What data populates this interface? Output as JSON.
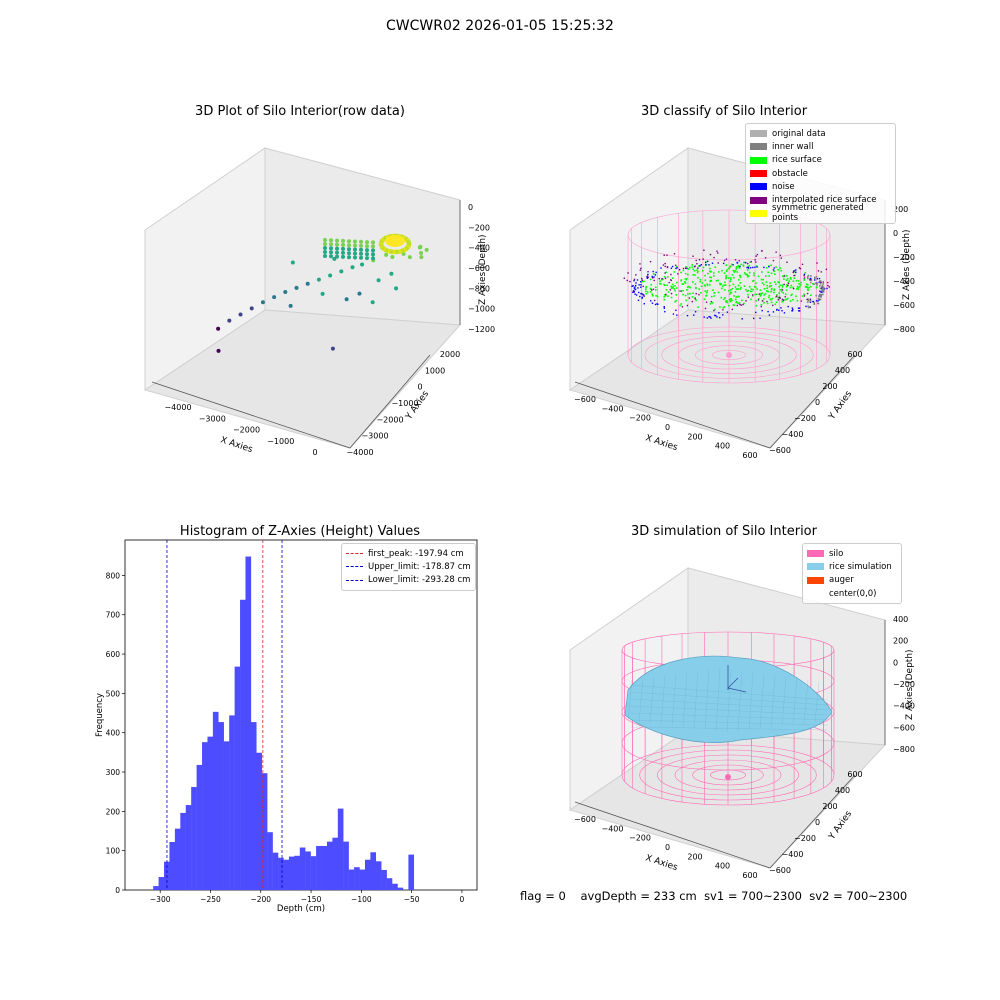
{
  "page_title": "CWCWR02 2026-01-05 15:25:32",
  "footer": {
    "flag": "flag = 0",
    "avg_depth": "avgDepth = 233 cm",
    "sv1": "sv1 = 700~2300",
    "sv2": "sv2 = 700~2300"
  },
  "colors": {
    "histogram_bar": "#4d4dff",
    "first_peak": "#d62728",
    "limit_lines": "#0000cc",
    "silo": "#ff69b4",
    "rice_simulation": "#87ceeb",
    "auger": "#ff4500",
    "rice_surface": "#00ff00",
    "noise": "#0000ff",
    "inner_wall": "#808080",
    "interpolated": "#800080"
  },
  "chart_data": [
    {
      "type": "scatter",
      "title": "3D Plot of Silo Interior(row data)",
      "projection": "3d",
      "xlabel": "X Axies",
      "ylabel": "Y Axies",
      "zlabel": "Z Axies (Depth)",
      "x_ticks": [
        "−4000",
        "−3000",
        "−2000",
        "−1000",
        "0"
      ],
      "y_ticks": [
        "−4000",
        "−3000",
        "−2000",
        "−1000",
        "0",
        "1000",
        "2000"
      ],
      "z_ticks": [
        "0",
        "−200",
        "−400",
        "−600",
        "−800",
        "−1000",
        "−1200"
      ],
      "xlim": [
        -4500,
        300
      ],
      "ylim": [
        -4200,
        2200
      ],
      "zlim": [
        -1300,
        0
      ],
      "colormap": "viridis",
      "points": [
        {
          "x": -200,
          "y": 1800,
          "z": -250
        },
        {
          "x": -300,
          "y": 1700,
          "z": -280
        },
        {
          "x": -400,
          "y": 1900,
          "z": -260
        },
        {
          "x": -250,
          "y": 1600,
          "z": -300
        },
        {
          "x": -350,
          "y": 1750,
          "z": -240
        },
        {
          "x": -500,
          "y": 1500,
          "z": -320
        },
        {
          "x": -700,
          "y": 1600,
          "z": -330
        },
        {
          "x": -900,
          "y": 1400,
          "z": -360
        },
        {
          "x": -1100,
          "y": 1500,
          "z": -380
        },
        {
          "x": -1300,
          "y": 1200,
          "z": -420
        },
        {
          "x": -1500,
          "y": 1000,
          "z": -460
        },
        {
          "x": -1700,
          "y": 900,
          "z": -500
        },
        {
          "x": -1900,
          "y": 700,
          "z": -540
        },
        {
          "x": -2100,
          "y": 500,
          "z": -580
        },
        {
          "x": -2300,
          "y": 300,
          "z": -620
        },
        {
          "x": -2500,
          "y": 100,
          "z": -660
        },
        {
          "x": -2700,
          "y": -100,
          "z": -700
        },
        {
          "x": -2900,
          "y": -300,
          "z": -740
        },
        {
          "x": -3100,
          "y": -500,
          "z": -790
        },
        {
          "x": -3300,
          "y": -700,
          "z": -840
        },
        {
          "x": -3500,
          "y": -900,
          "z": -900
        },
        {
          "x": -3700,
          "y": -1100,
          "z": -960
        },
        {
          "x": -3900,
          "y": -1300,
          "z": -1020
        },
        {
          "x": -4100,
          "y": -1500,
          "z": -1100
        },
        {
          "x": -3800,
          "y": -2200,
          "z": -1180
        },
        {
          "x": -1200,
          "y": -1500,
          "z": -900
        },
        {
          "x": -1600,
          "y": 300,
          "z": -720
        },
        {
          "x": -1400,
          "y": 600,
          "z": -680
        },
        {
          "x": -2000,
          "y": -200,
          "z": -650
        },
        {
          "x": -2600,
          "y": -700,
          "z": -780
        },
        {
          "x": -900,
          "y": 200,
          "z": -640
        },
        {
          "x": -600,
          "y": 900,
          "z": -560
        },
        {
          "x": -800,
          "y": 1100,
          "z": -470
        },
        {
          "x": -1000,
          "y": 800,
          "z": -520
        },
        {
          "x": -3000,
          "y": 400,
          "z": -560
        },
        {
          "x": -2200,
          "y": 1000,
          "z": -500
        }
      ]
    },
    {
      "type": "scatter",
      "title": "3D classify of Silo Interior",
      "projection": "3d",
      "xlabel": "X Axies",
      "ylabel": "Y Axies",
      "zlabel": "Z Axies (Depth)",
      "x_ticks": [
        "−600",
        "−400",
        "−200",
        "0",
        "200",
        "400",
        "600"
      ],
      "y_ticks": [
        "−600",
        "−400",
        "−200",
        "0",
        "200",
        "400",
        "600"
      ],
      "z_ticks": [
        "200",
        "0",
        "−200",
        "−400",
        "−600",
        "−800"
      ],
      "xlim": [
        -650,
        650
      ],
      "ylim": [
        -650,
        650
      ],
      "zlim": [
        -900,
        300
      ],
      "legend": [
        {
          "label": "original data",
          "color": "#b0b0b0"
        },
        {
          "label": "inner wall",
          "color": "#808080"
        },
        {
          "label": "rice surface",
          "color": "#00ff00"
        },
        {
          "label": "obstacle",
          "color": "#ff0000"
        },
        {
          "label": "noise",
          "color": "#0000ff"
        },
        {
          "label": "interpolated rice surface",
          "color": "#800080"
        },
        {
          "label": "symmetric generated points",
          "color": "#ffff00"
        }
      ],
      "legend_position": "upper-right"
    },
    {
      "type": "bar",
      "title": "Histogram of Z-Axies (Height) Values",
      "xlabel": "Depth (cm)",
      "ylabel": "Frequency",
      "xlim": [
        -335,
        15
      ],
      "ylim": [
        0,
        890
      ],
      "x_ticks": [
        -300,
        -250,
        -200,
        -150,
        -100,
        -50,
        0
      ],
      "y_ticks": [
        0,
        100,
        200,
        300,
        400,
        500,
        600,
        700,
        800
      ],
      "bin_width": 5.4,
      "bin_start": -307,
      "values": [
        10,
        33,
        72,
        122,
        156,
        196,
        216,
        262,
        318,
        376,
        390,
        453,
        427,
        378,
        444,
        568,
        738,
        848,
        427,
        349,
        297,
        147,
        95,
        82,
        77,
        85,
        87,
        108,
        98,
        86,
        112,
        112,
        123,
        133,
        207,
        123,
        52,
        58,
        52,
        77,
        96,
        73,
        51,
        30,
        16,
        6,
        0,
        90
      ],
      "lines": [
        {
          "label": "first_peak: -197.94 cm",
          "x": -197.94,
          "color": "#d62728"
        },
        {
          "label": "Upper_limit: -178.87 cm",
          "x": -178.87,
          "color": "#0000cc"
        },
        {
          "label": "Lower_limit: -293.28 cm",
          "x": -293.28,
          "color": "#0000cc"
        }
      ],
      "legend_position": "upper-right"
    },
    {
      "type": "area",
      "title": "3D simulation of Silo Interior",
      "projection": "3d",
      "xlabel": "X Axies",
      "ylabel": "Y Axies",
      "zlabel": "Z Axies (Depth)",
      "x_ticks": [
        "−600",
        "−400",
        "−200",
        "0",
        "200",
        "400",
        "600"
      ],
      "y_ticks": [
        "−600",
        "−400",
        "−200",
        "0",
        "200",
        "400",
        "600"
      ],
      "z_ticks": [
        "400",
        "200",
        "0",
        "−200",
        "−400",
        "−600",
        "−800"
      ],
      "xlim": [
        -650,
        650
      ],
      "ylim": [
        -650,
        650
      ],
      "zlim": [
        -900,
        450
      ],
      "legend": [
        {
          "label": "silo",
          "color": "#ff69b4"
        },
        {
          "label": "rice simulation",
          "color": "#87ceeb"
        },
        {
          "label": "auger",
          "color": "#ff4500"
        },
        {
          "label": "center(0,0)",
          "color": ""
        }
      ],
      "legend_position": "upper-right"
    }
  ]
}
